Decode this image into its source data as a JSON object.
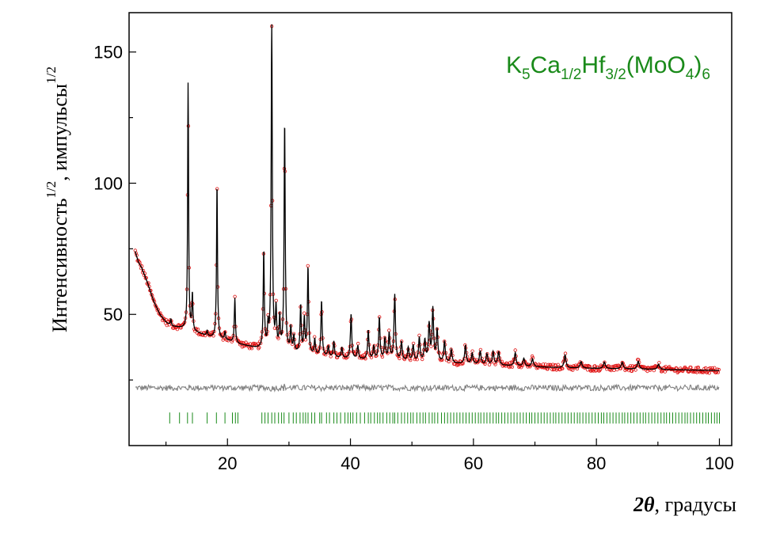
{
  "chart_data": {
    "type": "line",
    "title": "",
    "compound": {
      "parts": [
        {
          "text": "K",
          "sub": false
        },
        {
          "text": "5",
          "sub": true
        },
        {
          "text": "Ca",
          "sub": false
        },
        {
          "text": "1/2",
          "sub": true
        },
        {
          "text": "Hf",
          "sub": false
        },
        {
          "text": "3/2",
          "sub": true
        },
        {
          "text": "(MoO",
          "sub": false
        },
        {
          "text": "4",
          "sub": true
        },
        {
          "text": ")",
          "sub": false
        },
        {
          "text": "6",
          "sub": true
        }
      ],
      "color": "#1a8a1a"
    },
    "xlabel": {
      "symbol": "2θ",
      "rest": ", градусы"
    },
    "ylabel": {
      "part1": "Интенсивность",
      "sup1": "1/2",
      "part2": ", импульсы",
      "sup2": "1/2"
    },
    "xlim": [
      4,
      102
    ],
    "ylim": [
      0,
      165
    ],
    "xticks": [
      {
        "value": 20,
        "label": "20"
      },
      {
        "value": 40,
        "label": "40"
      },
      {
        "value": 60,
        "label": "60"
      },
      {
        "value": 80,
        "label": "80"
      },
      {
        "value": 100,
        "label": "100"
      }
    ],
    "yticks": [
      {
        "value": 50,
        "label": "50"
      },
      {
        "value": 100,
        "label": "100"
      },
      {
        "value": 150,
        "label": "150"
      }
    ],
    "grid": false,
    "background": {
      "points": [
        [
          5,
          74
        ],
        [
          5.5,
          70
        ],
        [
          6,
          68
        ],
        [
          7,
          62
        ],
        [
          8,
          55
        ],
        [
          9,
          50
        ],
        [
          10,
          47
        ],
        [
          11,
          45.5
        ],
        [
          12,
          45
        ],
        [
          13,
          44.5
        ],
        [
          15,
          43
        ],
        [
          17,
          41.5
        ],
        [
          20,
          40
        ],
        [
          22,
          38.5
        ],
        [
          25,
          37
        ],
        [
          28,
          36
        ],
        [
          30,
          35.5
        ],
        [
          35,
          34
        ],
        [
          40,
          33
        ],
        [
          45,
          32.5
        ],
        [
          50,
          32
        ],
        [
          55,
          31.5
        ],
        [
          60,
          31
        ],
        [
          65,
          30.5
        ],
        [
          70,
          30
        ],
        [
          75,
          29.6
        ],
        [
          80,
          29.4
        ],
        [
          85,
          29.2
        ],
        [
          90,
          29
        ],
        [
          95,
          28.8
        ],
        [
          100,
          28.6
        ]
      ]
    },
    "peaks": [
      {
        "x": 10.8,
        "h": 2.5
      },
      {
        "x": 13.6,
        "h": 94
      },
      {
        "x": 14.3,
        "h": 14
      },
      {
        "x": 16.7,
        "h": 2
      },
      {
        "x": 18.3,
        "h": 59
      },
      {
        "x": 19.6,
        "h": 3
      },
      {
        "x": 21.2,
        "h": 17
      },
      {
        "x": 25.9,
        "h": 37
      },
      {
        "x": 26.6,
        "h": 8
      },
      {
        "x": 27.2,
        "h": 123
      },
      {
        "x": 27.9,
        "h": 15
      },
      {
        "x": 28.5,
        "h": 12
      },
      {
        "x": 29.3,
        "h": 87
      },
      {
        "x": 30.3,
        "h": 9
      },
      {
        "x": 30.8,
        "h": 6
      },
      {
        "x": 31.9,
        "h": 18
      },
      {
        "x": 32.5,
        "h": 13
      },
      {
        "x": 33.1,
        "h": 33
      },
      {
        "x": 34.2,
        "h": 6
      },
      {
        "x": 35.3,
        "h": 21
      },
      {
        "x": 36.4,
        "h": 4
      },
      {
        "x": 37.3,
        "h": 6
      },
      {
        "x": 38.6,
        "h": 4
      },
      {
        "x": 40.1,
        "h": 17
      },
      {
        "x": 41.2,
        "h": 5
      },
      {
        "x": 42.9,
        "h": 11
      },
      {
        "x": 43.8,
        "h": 5
      },
      {
        "x": 44.7,
        "h": 16
      },
      {
        "x": 45.6,
        "h": 8
      },
      {
        "x": 46.3,
        "h": 10
      },
      {
        "x": 47.2,
        "h": 25
      },
      {
        "x": 48.3,
        "h": 7
      },
      {
        "x": 49.4,
        "h": 5
      },
      {
        "x": 50.2,
        "h": 6
      },
      {
        "x": 51.2,
        "h": 9
      },
      {
        "x": 52.1,
        "h": 8
      },
      {
        "x": 52.8,
        "h": 14
      },
      {
        "x": 53.4,
        "h": 20
      },
      {
        "x": 54.1,
        "h": 12
      },
      {
        "x": 55.3,
        "h": 8
      },
      {
        "x": 56.4,
        "h": 5
      },
      {
        "x": 58.7,
        "h": 7
      },
      {
        "x": 59.8,
        "h": 4
      },
      {
        "x": 61.1,
        "h": 5
      },
      {
        "x": 62.2,
        "h": 4
      },
      {
        "x": 63.2,
        "h": 5
      },
      {
        "x": 64.1,
        "h": 5
      },
      {
        "x": 66.8,
        "h": 5
      },
      {
        "x": 68.2,
        "h": 3
      },
      {
        "x": 69.6,
        "h": 3
      },
      {
        "x": 74.9,
        "h": 5
      },
      {
        "x": 77.5,
        "h": 2.5
      },
      {
        "x": 81.3,
        "h": 2.5
      },
      {
        "x": 84.2,
        "h": 2.5
      },
      {
        "x": 86.8,
        "h": 3
      },
      {
        "x": 90.1,
        "h": 2
      }
    ],
    "difference": {
      "offset": 22,
      "color": "#808080"
    },
    "series": [
      {
        "role": "observed",
        "color": "#e01010",
        "marker": "open-circle",
        "step": 0.12
      },
      {
        "role": "calculated",
        "color": "#000000",
        "step": 0.04
      }
    ],
    "reflections": {
      "y": 10.5,
      "color": "#1a8a1a",
      "positions": [
        10.6,
        12.2,
        13.5,
        14.3,
        16.7,
        18.2,
        19.6,
        20.8,
        21.3,
        21.7,
        25.6,
        26.1,
        26.6,
        27.2,
        27.7,
        28.3,
        28.8,
        29.2,
        30.0,
        30.7,
        31.2,
        31.8,
        32.3,
        32.7,
        33.1,
        33.7,
        34.2,
        35.0,
        35.3,
        36.1,
        36.6,
        37.3,
        37.8,
        38.4,
        39.1,
        39.6,
        40.0,
        40.4,
        41.0,
        41.6,
        42.3,
        42.9,
        43.3,
        43.9,
        44.4,
        44.8,
        45.3,
        45.9,
        46.4,
        46.9,
        47.2,
        47.7,
        48.3,
        48.8,
        49.3,
        49.8,
        50.2,
        50.8,
        51.3,
        51.8,
        52.2,
        52.8,
        53.3,
        53.7,
        54.2,
        54.8,
        55.3,
        55.8,
        56.3,
        56.8,
        57.3,
        57.8,
        58.3,
        58.8,
        59.3,
        59.8,
        60.3,
        60.8,
        61.2,
        61.7,
        62.2,
        62.7,
        63.2,
        63.7,
        64.1,
        64.6,
        65.1,
        65.6,
        66.1,
        66.6,
        67.1,
        67.6,
        68.1,
        68.6,
        69.1,
        69.5,
        70.0,
        70.5,
        71.0,
        71.5,
        72.0,
        72.5,
        73.0,
        73.4,
        73.9,
        74.4,
        74.9,
        75.4,
        75.9,
        76.4,
        76.9,
        77.3,
        77.8,
        78.3,
        78.8,
        79.3,
        79.8,
        80.3,
        80.8,
        81.2,
        81.7,
        82.2,
        82.7,
        83.2,
        83.7,
        84.2,
        84.6,
        85.1,
        85.6,
        86.1,
        86.6,
        87.1,
        87.6,
        88.0,
        88.5,
        89.0,
        89.5,
        90.0,
        90.5,
        91.0,
        91.4,
        91.9,
        92.4,
        92.9,
        93.4,
        93.9,
        94.4,
        94.8,
        95.3,
        95.8,
        96.3,
        96.8,
        97.3,
        97.8,
        98.2,
        98.7,
        99.2,
        99.6,
        100.0
      ]
    }
  }
}
